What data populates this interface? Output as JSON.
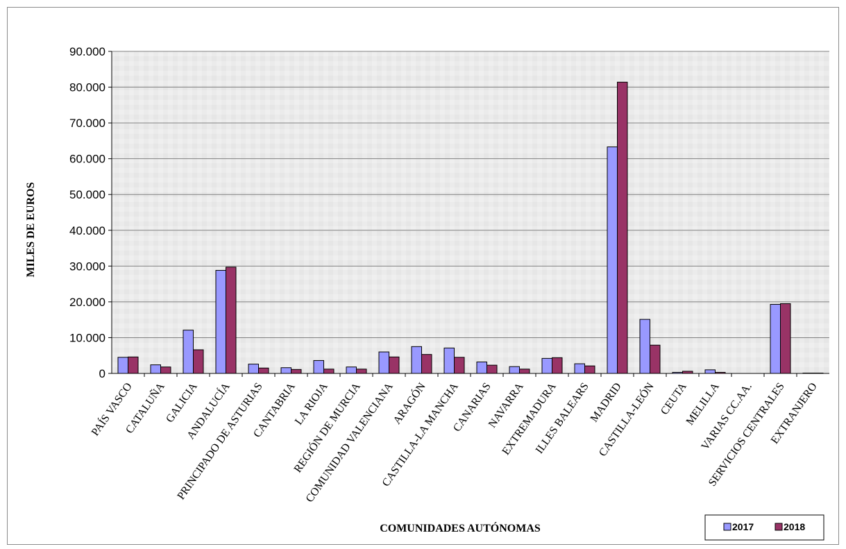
{
  "chart_data": {
    "type": "bar",
    "title": "",
    "xlabel": "COMUNIDADES AUTÓNOMAS",
    "ylabel": "MILES DE EUROS",
    "ylim": [
      0,
      90000
    ],
    "yticks": [
      0,
      10000,
      20000,
      30000,
      40000,
      50000,
      60000,
      70000,
      80000,
      90000
    ],
    "ytick_labels": [
      "0",
      "10.000",
      "20.000",
      "30.000",
      "40.000",
      "50.000",
      "60.000",
      "70.000",
      "80.000",
      "90.000"
    ],
    "grid": true,
    "legend_position": "bottom-right",
    "categories": [
      "PAÍS VASCO",
      "CATALUÑA",
      "GALICIA",
      "ANDALUCÍA",
      "PRINCIPADO DE ASTURIAS",
      "CANTABRIA",
      "LA RIOJA",
      "REGIÓN DE MURCIA",
      "COMUNIDAD VALENCIANA",
      "ARAGÓN",
      "CASTILLA-LA MANCHA",
      "CANARIAS",
      "NAVARRA",
      "EXTREMADURA",
      "ILLES BALEARS",
      "MADRID",
      "CASTILLA-LEÓN",
      "CEUTA",
      "MELILLA",
      "VARIAS CC.AA.",
      "SERVICIOS CENTRALES",
      "EXTRANJERO"
    ],
    "series": [
      {
        "name": "2017",
        "color": "#9999ff",
        "values": [
          4500,
          2400,
          12100,
          28800,
          2600,
          1600,
          3600,
          1800,
          6000,
          7500,
          7100,
          3200,
          1900,
          4200,
          2700,
          63300,
          15100,
          300,
          1000,
          0,
          19300,
          100
        ]
      },
      {
        "name": "2018",
        "color": "#993366",
        "values": [
          4600,
          1800,
          6600,
          29700,
          1500,
          1100,
          1200,
          1200,
          4600,
          5300,
          4500,
          2300,
          1200,
          4400,
          2100,
          81400,
          7900,
          600,
          300,
          0,
          19500,
          100
        ]
      }
    ]
  },
  "colors": {
    "plot_background": "#ebebeb",
    "gridline": "#7f7f7f",
    "bar_outline": "#000000"
  }
}
